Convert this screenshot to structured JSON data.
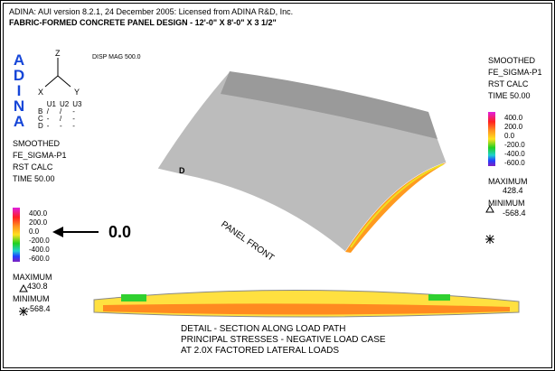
{
  "header": {
    "line1": "ADINA: AUI version 8.2.1, 24 December 2005: Licensed from ADINA R&D, Inc.",
    "line2": "FABRIC-FORMED CONCRETE PANEL DESIGN - 12'-0\" X 8'-0\" X 3 1/2\""
  },
  "logo": "ADINA",
  "disp_mag": "DISP MAG 500.0",
  "axes": {
    "z": "Z",
    "x": "X",
    "y": "Y"
  },
  "bc_table": {
    "columns": [
      "U1",
      "U2",
      "U3"
    ],
    "rows": [
      [
        "B",
        "/",
        "/",
        "-"
      ],
      [
        "C",
        "-",
        "/",
        "-"
      ],
      [
        "D",
        "-",
        "-",
        "-"
      ]
    ]
  },
  "left_legend": {
    "lines": [
      "SMOOTHED",
      "FE_SIGMA-P1",
      "RST CALC",
      "TIME 50.00"
    ],
    "ticks": [
      "400.0",
      "200.0",
      "0.0",
      "-200.0",
      "-400.0",
      "-600.0"
    ],
    "max_label": "MAXIMUM",
    "max_value": "430.8",
    "min_label": "MINIMUM",
    "min_value": "-568.4"
  },
  "zero_callout": "0.0",
  "right_legend": {
    "lines": [
      "SMOOTHED",
      "FE_SIGMA-P1",
      "RST CALC",
      "TIME 50.00"
    ],
    "ticks": [
      "400.0",
      "200.0",
      "0.0",
      "-200.0",
      "-400.0",
      "-600.0"
    ],
    "max_label": "MAXIMUM",
    "max_value": "428.4",
    "min_label": "MINIMUM",
    "min_value": "-568.4"
  },
  "model": {
    "corner_label": "D",
    "front_label": "PANEL FRONT"
  },
  "caption": [
    "DETAIL - SECTION ALONG LOAD PATH",
    "PRINCIPAL STRESSES - NEGATIVE LOAD CASE",
    "AT 2.0X FACTORED LATERAL LOADS"
  ]
}
